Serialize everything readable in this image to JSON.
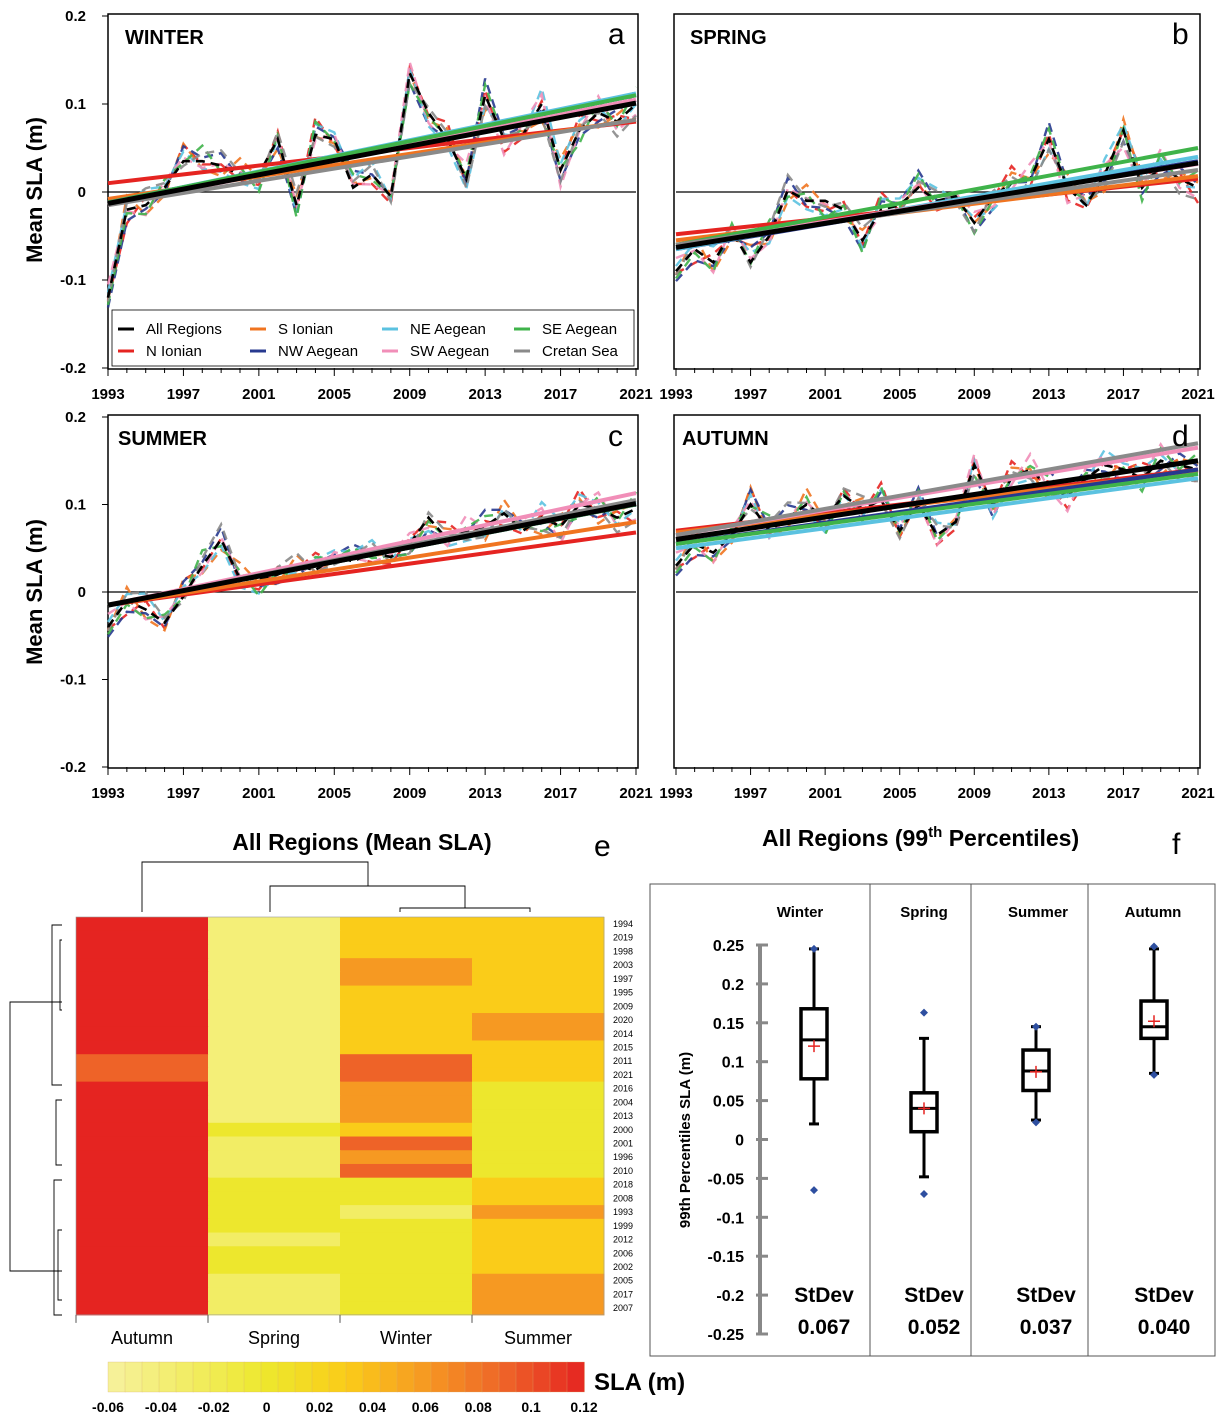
{
  "chart_data": [
    {
      "id": "a",
      "type": "line",
      "panel_letter": "a",
      "season_label": "WINTER",
      "ylabel": "Mean SLA (m)",
      "ylim": [
        -0.2,
        0.2
      ],
      "yticks": [
        "0.2",
        "0.1",
        "0",
        "-0.1",
        "-0.2"
      ],
      "xlim": [
        1993,
        2021
      ],
      "xticks": [
        "1993",
        "1997",
        "2001",
        "2005",
        "2009",
        "2013",
        "2017",
        "2021"
      ],
      "trends": [
        {
          "series": "N Ionian",
          "y1993": 0.01,
          "y2021": 0.08
        },
        {
          "series": "S Ionian",
          "y1993": -0.008,
          "y2021": 0.082
        },
        {
          "series": "NW Aegean",
          "y1993": -0.012,
          "y2021": 0.11
        },
        {
          "series": "NE Aegean",
          "y1993": -0.012,
          "y2021": 0.112
        },
        {
          "series": "SW Aegean",
          "y1993": -0.015,
          "y2021": 0.105
        },
        {
          "series": "SE Aegean",
          "y1993": -0.012,
          "y2021": 0.11
        },
        {
          "series": "Cretan Sea",
          "y1993": -0.015,
          "y2021": 0.082
        },
        {
          "series": "All Regions",
          "y1993": -0.013,
          "y2021": 0.101
        }
      ],
      "all_regions_values": [
        -0.12,
        -0.02,
        -0.015,
        0.005,
        0.035,
        0.035,
        0.03,
        0.02,
        0.02,
        0.06,
        -0.015,
        0.065,
        0.06,
        0.005,
        0.02,
        -0.005,
        0.135,
        0.09,
        0.06,
        0.015,
        0.11,
        0.06,
        0.065,
        0.1,
        0.025,
        0.07,
        0.09,
        0.08,
        0.1
      ]
    },
    {
      "id": "b",
      "type": "line",
      "panel_letter": "b",
      "season_label": "SPRING",
      "ylim": [
        -0.2,
        0.2
      ],
      "xlim": [
        1993,
        2021
      ],
      "xticks": [
        "1993",
        "1997",
        "2001",
        "2005",
        "2009",
        "2013",
        "2017",
        "2021"
      ],
      "trends": [
        {
          "series": "N Ionian",
          "y1993": -0.048,
          "y2021": 0.015
        },
        {
          "series": "S Ionian",
          "y1993": -0.055,
          "y2021": 0.018
        },
        {
          "series": "NW Aegean",
          "y1993": -0.065,
          "y2021": 0.035
        },
        {
          "series": "NE Aegean",
          "y1993": -0.065,
          "y2021": 0.04
        },
        {
          "series": "SW Aegean",
          "y1993": -0.06,
          "y2021": 0.032
        },
        {
          "series": "SE Aegean",
          "y1993": -0.06,
          "y2021": 0.05
        },
        {
          "series": "Cretan Sea",
          "y1993": -0.06,
          "y2021": 0.025
        },
        {
          "series": "All Regions",
          "y1993": -0.063,
          "y2021": 0.033
        }
      ],
      "all_regions_values": [
        -0.09,
        -0.065,
        -0.08,
        -0.045,
        -0.08,
        -0.05,
        0.002,
        -0.01,
        -0.01,
        -0.02,
        -0.055,
        -0.02,
        -0.015,
        0.005,
        -0.01,
        -0.005,
        -0.035,
        -0.005,
        0.01,
        0.015,
        0.06,
        0.005,
        -0.015,
        0.02,
        0.07,
        0.005,
        0.03,
        0.015,
        0.005
      ]
    },
    {
      "id": "c",
      "type": "line",
      "panel_letter": "c",
      "season_label": "SUMMER",
      "ylabel": "Mean SLA (m)",
      "ylim": [
        -0.2,
        0.2
      ],
      "yticks": [
        "0.2",
        "0.1",
        "0",
        "-0.1",
        "-0.2"
      ],
      "xlim": [
        1993,
        2021
      ],
      "xticks": [
        "1993",
        "1997",
        "2001",
        "2005",
        "2009",
        "2013",
        "2017",
        "2021"
      ],
      "trends": [
        {
          "series": "N Ionian",
          "y1993": -0.015,
          "y2021": 0.068
        },
        {
          "series": "S Ionian",
          "y1993": -0.015,
          "y2021": 0.08
        },
        {
          "series": "NW Aegean",
          "y1993": -0.015,
          "y2021": 0.1
        },
        {
          "series": "NE Aegean",
          "y1993": -0.015,
          "y2021": 0.103
        },
        {
          "series": "SW Aegean",
          "y1993": -0.015,
          "y2021": 0.113
        },
        {
          "series": "SE Aegean",
          "y1993": -0.015,
          "y2021": 0.1
        },
        {
          "series": "Cretan Sea",
          "y1993": -0.015,
          "y2021": 0.105
        },
        {
          "series": "All Regions",
          "y1993": -0.015,
          "y2021": 0.101
        }
      ],
      "all_regions_values": [
        -0.04,
        -0.01,
        -0.02,
        -0.035,
        -0.005,
        0.03,
        0.06,
        0.015,
        0.015,
        0.02,
        0.03,
        0.025,
        0.04,
        0.035,
        0.045,
        0.04,
        0.055,
        0.085,
        0.06,
        0.07,
        0.075,
        0.09,
        0.07,
        0.085,
        0.075,
        0.1,
        0.095,
        0.085,
        0.095
      ]
    },
    {
      "id": "d",
      "type": "line",
      "panel_letter": "d",
      "season_label": "AUTUMN",
      "ylim": [
        -0.2,
        0.2
      ],
      "xlim": [
        1993,
        2021
      ],
      "xticks": [
        "1993",
        "1997",
        "2001",
        "2005",
        "2009",
        "2013",
        "2017",
        "2021"
      ],
      "trends": [
        {
          "series": "N Ionian",
          "y1993": 0.07,
          "y2021": 0.14
        },
        {
          "series": "S Ionian",
          "y1993": 0.068,
          "y2021": 0.138
        },
        {
          "series": "NE Aegean",
          "y1993": 0.05,
          "y2021": 0.13
        },
        {
          "series": "NW Aegean",
          "y1993": 0.055,
          "y2021": 0.14
        },
        {
          "series": "SE Aegean",
          "y1993": 0.055,
          "y2021": 0.135
        },
        {
          "series": "SW Aegean",
          "y1993": 0.065,
          "y2021": 0.165
        },
        {
          "series": "Cretan Sea",
          "y1993": 0.065,
          "y2021": 0.17
        },
        {
          "series": "All Regions",
          "y1993": 0.06,
          "y2021": 0.15
        }
      ],
      "all_regions_values": [
        0.03,
        0.055,
        0.045,
        0.065,
        0.1,
        0.07,
        0.085,
        0.1,
        0.085,
        0.11,
        0.095,
        0.105,
        0.07,
        0.1,
        0.065,
        0.08,
        0.145,
        0.1,
        0.13,
        0.14,
        0.12,
        0.11,
        0.13,
        0.145,
        0.14,
        0.13,
        0.15,
        0.145,
        0.14
      ]
    },
    {
      "id": "e",
      "type": "heatmap",
      "panel_letter": "e",
      "title": "All Regions (Mean SLA)",
      "columns": [
        "Autumn",
        "Spring",
        "Winter",
        "Summer"
      ],
      "rows": [
        "1994",
        "2019",
        "1998",
        "2003",
        "1997",
        "1995",
        "2009",
        "2020",
        "2014",
        "2015",
        "2011",
        "2021",
        "2016",
        "2004",
        "2013",
        "2000",
        "2001",
        "1996",
        "2010",
        "2018",
        "2008",
        "1993",
        "1999",
        "2012",
        "2006",
        "2002",
        "2005",
        "2017",
        "2007"
      ],
      "values": [
        [
          0.12,
          -0.04,
          0.03,
          0.03
        ],
        [
          0.12,
          -0.04,
          0.03,
          0.03
        ],
        [
          0.12,
          -0.04,
          0.03,
          0.03
        ],
        [
          0.12,
          -0.04,
          0.06,
          0.03
        ],
        [
          0.12,
          -0.04,
          0.06,
          0.03
        ],
        [
          0.12,
          -0.04,
          0.03,
          0.03
        ],
        [
          0.12,
          -0.04,
          0.03,
          0.03
        ],
        [
          0.12,
          -0.04,
          0.03,
          0.06
        ],
        [
          0.12,
          -0.04,
          0.03,
          0.06
        ],
        [
          0.12,
          -0.04,
          0.03,
          0.03
        ],
        [
          0.09,
          -0.04,
          0.09,
          0.03
        ],
        [
          0.09,
          -0.04,
          0.09,
          0.03
        ],
        [
          0.12,
          -0.04,
          0.06,
          0.0
        ],
        [
          0.12,
          -0.04,
          0.06,
          0.0
        ],
        [
          0.12,
          -0.04,
          0.06,
          0.0
        ],
        [
          0.12,
          0.0,
          0.03,
          0.0
        ],
        [
          0.12,
          -0.03,
          0.09,
          0.0
        ],
        [
          0.12,
          -0.03,
          0.06,
          0.0
        ],
        [
          0.12,
          -0.03,
          0.09,
          0.0
        ],
        [
          0.12,
          0.0,
          0.0,
          0.03
        ],
        [
          0.12,
          0.0,
          0.0,
          0.03
        ],
        [
          0.12,
          0.0,
          -0.03,
          0.06
        ],
        [
          0.12,
          0.0,
          0.0,
          0.03
        ],
        [
          0.12,
          -0.03,
          0.0,
          0.03
        ],
        [
          0.12,
          0.0,
          0.0,
          0.03
        ],
        [
          0.12,
          0.0,
          0.0,
          0.03
        ],
        [
          0.12,
          -0.03,
          0.0,
          0.06
        ],
        [
          0.12,
          -0.03,
          0.0,
          0.06
        ],
        [
          0.12,
          -0.03,
          0.0,
          0.06
        ]
      ],
      "colorbar_label": "SLA (m)",
      "colorbar_ticks": [
        "-0.06",
        "-0.04",
        "-0.02",
        "0",
        "0.02",
        "0.04",
        "0.06",
        "0.08",
        "0.1",
        "0.12"
      ],
      "colorbar_range": [
        -0.06,
        0.12
      ]
    },
    {
      "id": "f",
      "type": "box",
      "panel_letter": "f",
      "title_prefix": "All Regions (99",
      "title_sup": "th",
      "title_suffix": " Percentiles)",
      "ylabel": "99th Percentiles SLA (m)",
      "ylim": [
        -0.25,
        0.25
      ],
      "yticks": [
        "0.25",
        "0.2",
        "0.15",
        "0.1",
        "0.05",
        "0",
        "-0.05",
        "-0.1",
        "-0.15",
        "-0.2",
        "-0.25"
      ],
      "stdev_label": "StDev",
      "boxes": [
        {
          "season": "Winter",
          "min": 0.02,
          "q1": 0.078,
          "median": 0.128,
          "q3": 0.168,
          "max": 0.245,
          "mean": 0.12,
          "outliers": [
            0.245,
            -0.065
          ],
          "stdev": "0.067"
        },
        {
          "season": "Spring",
          "min": -0.048,
          "q1": 0.01,
          "median": 0.04,
          "q3": 0.06,
          "max": 0.13,
          "mean": 0.04,
          "outliers": [
            0.163,
            -0.07
          ],
          "stdev": "0.052"
        },
        {
          "season": "Summer",
          "min": 0.025,
          "q1": 0.063,
          "median": 0.088,
          "q3": 0.115,
          "max": 0.145,
          "mean": 0.087,
          "outliers": [
            0.145,
            0.022
          ],
          "stdev": "0.037"
        },
        {
          "season": "Autumn",
          "min": 0.085,
          "q1": 0.13,
          "median": 0.145,
          "q3": 0.178,
          "max": 0.245,
          "mean": 0.152,
          "outliers": [
            0.248,
            0.083
          ],
          "stdev": "0.040"
        }
      ]
    }
  ],
  "legend": {
    "items": [
      {
        "name": "All Regions",
        "color": "#000000"
      },
      {
        "name": "S Ionian",
        "color": "#f07420"
      },
      {
        "name": "NE Aegean",
        "color": "#5bc2e0"
      },
      {
        "name": "SE Aegean",
        "color": "#3fb34a"
      },
      {
        "name": "N Ionian",
        "color": "#e52421"
      },
      {
        "name": "NW Aegean",
        "color": "#27398f"
      },
      {
        "name": "SW Aegean",
        "color": "#f18eb8"
      },
      {
        "name": "Cretan Sea",
        "color": "#8a8a8a"
      }
    ]
  },
  "colors": {
    "N Ionian": "#e52421",
    "S Ionian": "#f07420",
    "NW Aegean": "#27398f",
    "NE Aegean": "#5bc2e0",
    "SW Aegean": "#f18eb8",
    "SE Aegean": "#3fb34a",
    "Cretan Sea": "#8a8a8a",
    "All Regions": "#000000",
    "box_mean": "#e52421",
    "box_outlier": "#2e4fa0"
  }
}
